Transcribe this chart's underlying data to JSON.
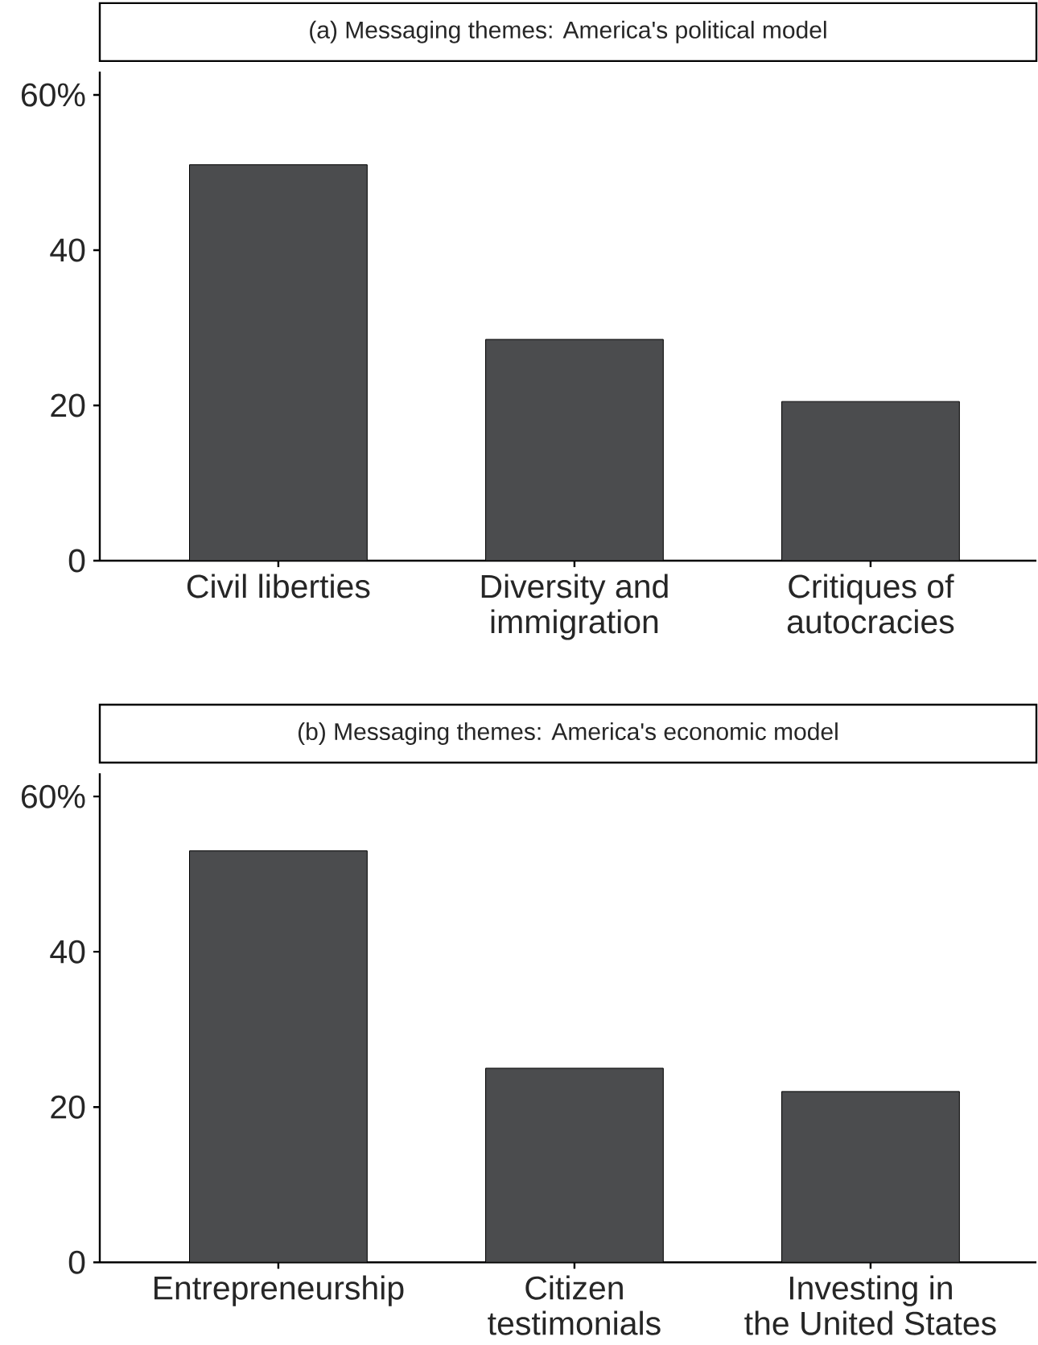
{
  "chart_data": [
    {
      "type": "bar",
      "title": "(a) Messaging themes: America's political model",
      "categories": [
        "Civil liberties",
        "Diversity and immigration",
        "Critiques of autocracies"
      ],
      "values": [
        51,
        28.5,
        20.5
      ],
      "color": "#4b4c4e",
      "ylim": [
        0,
        63
      ],
      "yticks": [
        0,
        20,
        40,
        {
          "value": 60,
          "label": "60%"
        }
      ]
    },
    {
      "type": "bar",
      "title": "(b) Messaging themes: America's economic model",
      "categories": [
        "Entrepreneurship",
        "Citizen testimonials",
        "Investing in the United States"
      ],
      "values": [
        53,
        25,
        22
      ],
      "color": "#4b4c4e",
      "ylim": [
        0,
        63
      ],
      "yticks": [
        0,
        20,
        40,
        {
          "value": 60,
          "label": "60%"
        }
      ]
    }
  ]
}
